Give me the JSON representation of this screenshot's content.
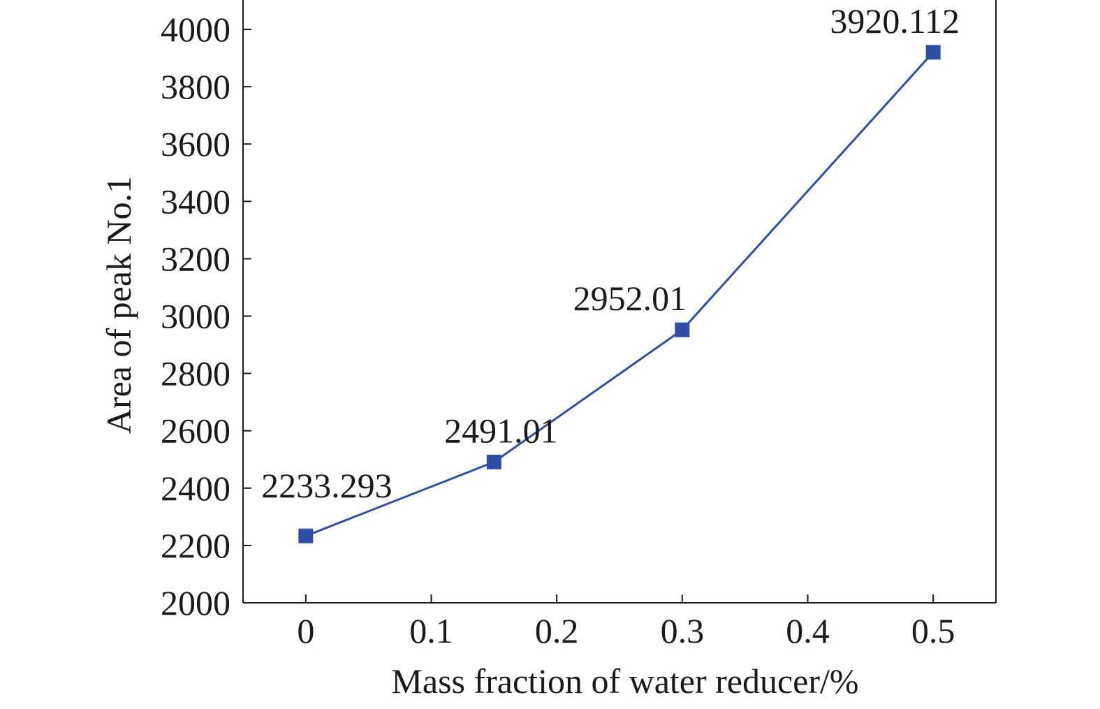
{
  "chart_data": {
    "type": "line",
    "xlabel": "Mass fraction of water reducer/%",
    "ylabel": "Area of peak No.1",
    "xlim": [
      -0.05,
      0.55
    ],
    "ylim": [
      2000,
      4000
    ],
    "x_ticks": [
      0,
      0.1,
      0.2,
      0.3,
      0.4,
      0.5
    ],
    "x_tick_labels": [
      "0",
      "0.1",
      "0.2",
      "0.3",
      "0.4",
      "0.5"
    ],
    "y_ticks": [
      2000,
      2200,
      2400,
      2600,
      2800,
      3000,
      3200,
      3400,
      3600,
      3800,
      4000
    ],
    "y_tick_labels": [
      "2000",
      "2200",
      "2400",
      "2600",
      "2800",
      "3000",
      "3200",
      "3400",
      "3600",
      "3800",
      "4000"
    ],
    "grid": false,
    "marker": "square",
    "series": [
      {
        "x": [
          0,
          0.15,
          0.3,
          0.5
        ],
        "y": [
          2233.293,
          2491.01,
          2952.01,
          3920.112
        ],
        "data_labels": [
          "2233.293",
          "2491.01",
          "2952.01",
          "3920.112"
        ],
        "color": "#2f4fa6"
      }
    ]
  }
}
